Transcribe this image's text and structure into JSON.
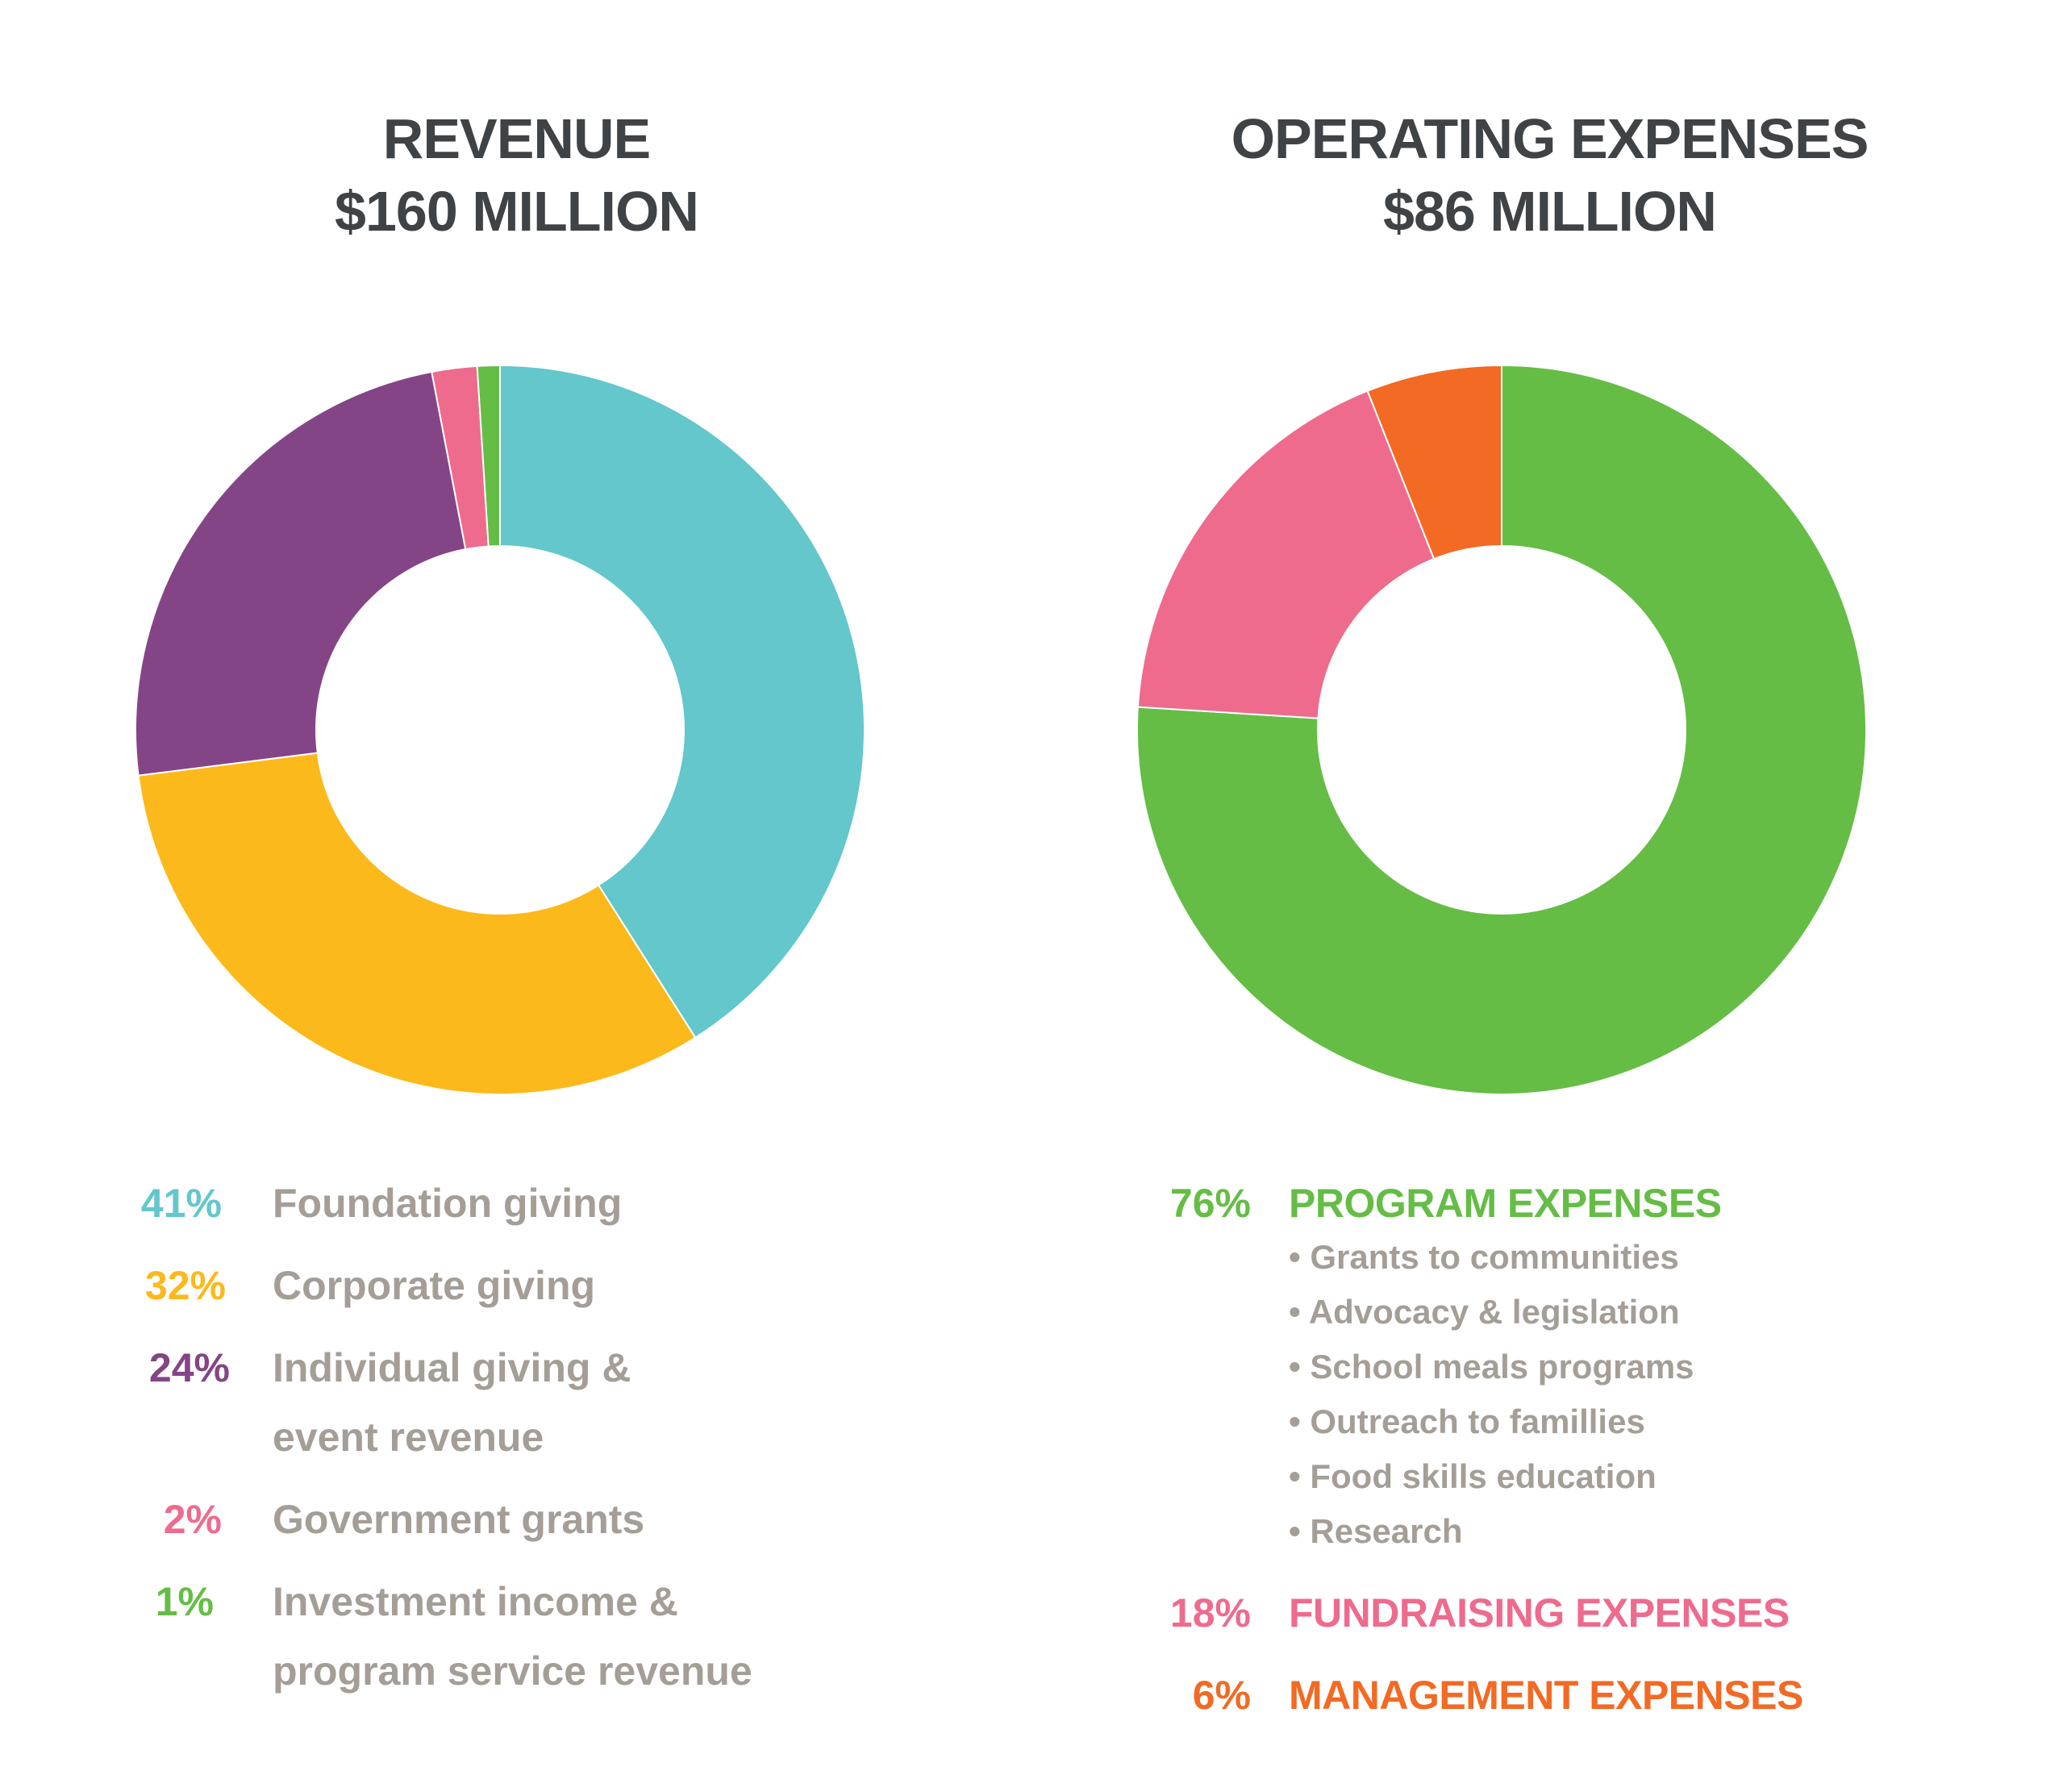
{
  "revenue": {
    "title": "REVENUE",
    "total": "$160 MILLION",
    "legend": [
      {
        "pct": "41%",
        "label": "Foundation giving",
        "color": "#63c7cc"
      },
      {
        "pct": "32%",
        "label": "Corporate giving",
        "color": "#fcb91b"
      },
      {
        "pct": "24%",
        "label_line1": "Individual giving &",
        "label_line2": "event revenue",
        "color": "#844587"
      },
      {
        "pct": "2%",
        "label": "Government grants",
        "color": "#ee6b8e"
      },
      {
        "pct": "1%",
        "label_line1": "Investment income &",
        "label_line2": "program service revenue",
        "color": "#65bd46"
      }
    ]
  },
  "expenses": {
    "title": "OPERATING EXPENSES",
    "total": "$86 MILLION",
    "program": {
      "pct": "76%",
      "label": "PROGRAM EXPENSES",
      "color": "#65bd46"
    },
    "program_items": [
      "• Grants to communities",
      "• Advocacy & legislation",
      "• School meals programs",
      "• Outreach to famillies",
      "• Food skills education",
      "• Research"
    ],
    "fundraising": {
      "pct": "18%",
      "label": "FUNDRAISING EXPENSES",
      "color": "#ee6b8e"
    },
    "management": {
      "pct": "6%",
      "label": "MANAGEMENT EXPENSES",
      "color": "#f26a24"
    }
  },
  "chart_data": [
    {
      "type": "pie",
      "variant": "donut",
      "title": "REVENUE",
      "subtitle": "$160 MILLION",
      "categories": [
        "Foundation giving",
        "Corporate giving",
        "Individual giving & event revenue",
        "Government grants",
        "Investment income & program service revenue"
      ],
      "values": [
        41,
        32,
        24,
        2,
        1
      ],
      "colors": [
        "#63c7cc",
        "#fcb91b",
        "#844587",
        "#ee6b8e",
        "#65bd46"
      ],
      "unit": "%",
      "legend_position": "bottom"
    },
    {
      "type": "pie",
      "variant": "donut",
      "title": "OPERATING EXPENSES",
      "subtitle": "$86 MILLION",
      "categories": [
        "PROGRAM EXPENSES",
        "FUNDRAISING EXPENSES",
        "MANAGEMENT EXPENSES"
      ],
      "values": [
        76,
        18,
        6
      ],
      "colors": [
        "#65bd46",
        "#ee6b8e",
        "#f26a24"
      ],
      "unit": "%",
      "legend_position": "bottom"
    }
  ]
}
